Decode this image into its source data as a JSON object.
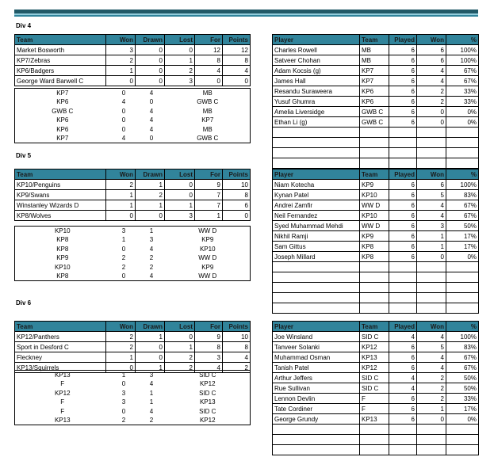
{
  "colors": {
    "header_bg": "#31849b",
    "band_dark": "#215967",
    "band_light": "#92cddc"
  },
  "standings_headers": [
    "Team",
    "Won",
    "Drawn",
    "Lost",
    "For",
    "Points"
  ],
  "player_headers": [
    "Player",
    "Team",
    "Played",
    "Won",
    "%"
  ],
  "divisions": [
    {
      "label": "Div 4",
      "standings": [
        [
          "Market Bosworth",
          "3",
          "0",
          "0",
          "12",
          "12"
        ],
        [
          "KP7/Zebras",
          "2",
          "0",
          "1",
          "8",
          "8"
        ],
        [
          "KP6/Badgers",
          "1",
          "0",
          "2",
          "4",
          "4"
        ],
        [
          "George Ward Barwell C",
          "0",
          "0",
          "3",
          "0",
          "0"
        ]
      ],
      "results": [
        [
          "KP7",
          "0",
          "4",
          "MB"
        ],
        [
          "KP6",
          "4",
          "0",
          "GWB C"
        ],
        [
          "GWB C",
          "0",
          "4",
          "MB"
        ],
        [
          "KP6",
          "0",
          "4",
          "KP7"
        ],
        [
          "KP6",
          "0",
          "4",
          "MB"
        ],
        [
          "KP7",
          "4",
          "0",
          "GWB C"
        ]
      ],
      "players": [
        [
          "Charles Rowell",
          "MB",
          "6",
          "6",
          "100%"
        ],
        [
          "Satveer Chohan",
          "MB",
          "6",
          "6",
          "100%"
        ],
        [
          "Adam Kocsis (g)",
          "KP7",
          "6",
          "4",
          "67%"
        ],
        [
          "James Hall",
          "KP7",
          "6",
          "4",
          "67%"
        ],
        [
          "Resandu Suraweera",
          "KP6",
          "6",
          "2",
          "33%"
        ],
        [
          "Yusuf Ghumra",
          "KP6",
          "6",
          "2",
          "33%"
        ],
        [
          "Amelia Liversidge",
          "GWB C",
          "6",
          "0",
          "0%"
        ],
        [
          "Ethan Li (g)",
          "GWB C",
          "6",
          "0",
          "0%"
        ],
        [
          "",
          "",
          "",
          "",
          ""
        ],
        [
          "",
          "",
          "",
          "",
          ""
        ],
        [
          "",
          "",
          "",
          "",
          ""
        ],
        [
          "",
          "",
          "",
          "",
          ""
        ]
      ]
    },
    {
      "label": "Div 5",
      "standings": [
        [
          "KP10/Penguins",
          "2",
          "1",
          "0",
          "9",
          "10"
        ],
        [
          "KP9/Swans",
          "1",
          "2",
          "0",
          "7",
          "8"
        ],
        [
          "Winstanley Wizards D",
          "1",
          "1",
          "1",
          "7",
          "6"
        ],
        [
          "KP8/Wolves",
          "0",
          "0",
          "3",
          "1",
          "0"
        ]
      ],
      "results": [
        [
          "KP10",
          "3",
          "1",
          "WW D"
        ],
        [
          "KP8",
          "1",
          "3",
          "KP9"
        ],
        [
          "KP8",
          "0",
          "4",
          "KP10"
        ],
        [
          "KP9",
          "2",
          "2",
          "WW D"
        ],
        [
          "KP10",
          "2",
          "2",
          "KP9"
        ],
        [
          "KP8",
          "0",
          "4",
          "WW D"
        ]
      ],
      "players": [
        [
          "Niam Kotecha",
          "KP9",
          "6",
          "6",
          "100%"
        ],
        [
          "Kynan Patel",
          "KP10",
          "6",
          "5",
          "83%"
        ],
        [
          "Andrei Zamfir",
          "WW D",
          "6",
          "4",
          "67%"
        ],
        [
          "Neil Fernandez",
          "KP10",
          "6",
          "4",
          "67%"
        ],
        [
          "Syed Muhammad Mehdi",
          "WW D",
          "6",
          "3",
          "50%"
        ],
        [
          "Nikhil Ramji",
          "KP9",
          "6",
          "1",
          "17%"
        ],
        [
          "Sam Gittus",
          "KP8",
          "6",
          "1",
          "17%"
        ],
        [
          "Joseph Millard",
          "KP8",
          "6",
          "0",
          "0%"
        ],
        [
          "",
          "",
          "",
          "",
          ""
        ],
        [
          "",
          "",
          "",
          "",
          ""
        ],
        [
          "",
          "",
          "",
          "",
          ""
        ],
        [
          "",
          "",
          "",
          "",
          ""
        ],
        [
          "",
          "",
          "",
          "",
          ""
        ]
      ]
    },
    {
      "label": "Div 6",
      "standings": [
        [
          "KP12/Panthers",
          "2",
          "1",
          "0",
          "9",
          "10"
        ],
        [
          "Sport in Desford C",
          "2",
          "0",
          "1",
          "8",
          "8"
        ],
        [
          "Fleckney",
          "1",
          "0",
          "2",
          "3",
          "4"
        ],
        [
          "KP13/Squirrels",
          "0",
          "1",
          "2",
          "4",
          "2"
        ]
      ],
      "results": [
        [
          "KP13",
          "1",
          "3",
          "SID C"
        ],
        [
          "F",
          "0",
          "4",
          "KP12"
        ],
        [
          "KP12",
          "3",
          "1",
          "SID C"
        ],
        [
          "F",
          "3",
          "1",
          "KP13"
        ],
        [
          "F",
          "0",
          "4",
          "SID C"
        ],
        [
          "KP13",
          "2",
          "2",
          "KP12"
        ]
      ],
      "players": [
        [
          "Joe Winsland",
          "SID C",
          "4",
          "4",
          "100%"
        ],
        [
          "Tanveer Solanki",
          "KP12",
          "6",
          "5",
          "83%"
        ],
        [
          "Muhammad Osman",
          "KP13",
          "6",
          "4",
          "67%"
        ],
        [
          "Tanish Patel",
          "KP12",
          "6",
          "4",
          "67%"
        ],
        [
          "Arthur Jeffers",
          "SID C",
          "4",
          "2",
          "50%"
        ],
        [
          "Rue Sullivan",
          "SID C",
          "4",
          "2",
          "50%"
        ],
        [
          "Lennon Devlin",
          "F",
          "6",
          "2",
          "33%"
        ],
        [
          "Tate Cordiner",
          "F",
          "6",
          "1",
          "17%"
        ],
        [
          "George Grundy",
          "KP13",
          "6",
          "0",
          "0%"
        ],
        [
          "",
          "",
          "",
          "",
          ""
        ],
        [
          "",
          "",
          "",
          "",
          ""
        ],
        [
          "",
          "",
          "",
          "",
          ""
        ]
      ]
    }
  ]
}
